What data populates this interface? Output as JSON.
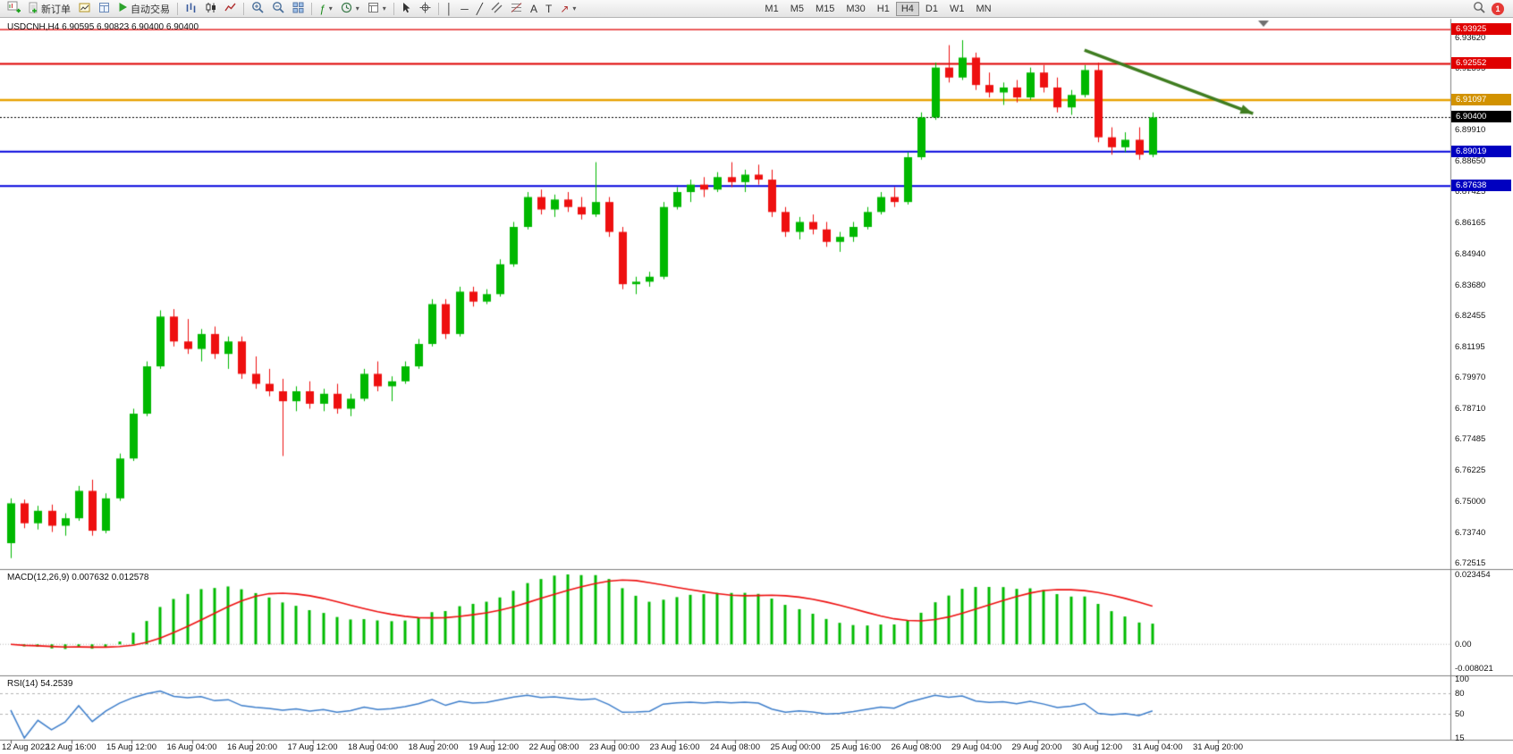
{
  "toolbar": {
    "new_order": "新订单",
    "autotrading": "自动交易",
    "timeframes": [
      "M1",
      "M5",
      "M15",
      "M30",
      "H1",
      "H4",
      "D1",
      "W1",
      "MN"
    ],
    "active_timeframe": "H4",
    "notification_count": "1"
  },
  "chart": {
    "title_line": "USDCNH,H4 6.90595 6.90823 6.90400 6.90400",
    "symbol": "USDCNH",
    "period": "H4"
  },
  "chart_data": [
    {
      "type": "candlestick",
      "symbol": "USDCNH",
      "timeframe": "H4",
      "title": "USDCNH,H4 6.90595 6.90823 6.90400 6.90400",
      "up_color": "#00b800",
      "down_color": "#ee1010",
      "ylim": [
        6.7226,
        6.9436
      ],
      "y_ticks": [
        6.9362,
        6.92395,
        6.91135,
        6.8991,
        6.8865,
        6.87425,
        6.86165,
        6.8494,
        6.8368,
        6.82455,
        6.81195,
        6.7997,
        6.7871,
        6.77485,
        6.76225,
        6.75,
        6.7374,
        6.72515
      ],
      "x_labels": [
        "12 Aug 2022",
        "12 Aug 16:00",
        "15 Aug 12:00",
        "16 Aug 04:00",
        "16 Aug 20:00",
        "17 Aug 12:00",
        "18 Aug 04:00",
        "18 Aug 20:00",
        "19 Aug 12:00",
        "22 Aug 08:00",
        "23 Aug 00:00",
        "23 Aug 16:00",
        "24 Aug 08:00",
        "25 Aug 00:00",
        "25 Aug 16:00",
        "26 Aug 08:00",
        "29 Aug 04:00",
        "29 Aug 20:00",
        "30 Aug 12:00",
        "31 Aug 04:00",
        "31 Aug 20:00"
      ],
      "hlines": [
        {
          "price": 6.93925,
          "color": "#e00000",
          "width": 1.3,
          "badge": "#e00000"
        },
        {
          "price": 6.92552,
          "color": "#e00000",
          "width": 2,
          "badge": "#e00000"
        },
        {
          "price": 6.91097,
          "color": "#e8a200",
          "width": 2.4,
          "badge": "#d29200"
        },
        {
          "price": 6.89019,
          "color": "#0000dd",
          "width": 2,
          "badge": "#0000c0"
        },
        {
          "price": 6.87638,
          "color": "#0000dd",
          "width": 2,
          "badge": "#0000c0"
        }
      ],
      "current_price": 6.904,
      "current_badge_color": "#000000",
      "trend_arrow": {
        "from": {
          "bar": 79,
          "price": 6.931
        },
        "to": {
          "bar": 91.4,
          "price": 6.9055
        },
        "color": "#3f7d20",
        "width": 3.5
      },
      "candles": [
        [
          6.733,
          6.751,
          6.727,
          6.749
        ],
        [
          6.749,
          6.7505,
          6.739,
          6.741
        ],
        [
          6.741,
          6.748,
          6.7385,
          6.746
        ],
        [
          6.746,
          6.7485,
          6.7375,
          6.74
        ],
        [
          6.74,
          6.745,
          6.736,
          6.743
        ],
        [
          6.743,
          6.756,
          6.742,
          6.754
        ],
        [
          6.754,
          6.7585,
          6.736,
          6.738
        ],
        [
          6.738,
          6.753,
          6.737,
          6.751
        ],
        [
          6.751,
          6.769,
          6.75,
          6.767
        ],
        [
          6.767,
          6.787,
          6.766,
          6.785
        ],
        [
          6.785,
          6.806,
          6.784,
          6.804
        ],
        [
          6.804,
          6.8265,
          6.803,
          6.824
        ],
        [
          6.824,
          6.827,
          6.812,
          6.814
        ],
        [
          6.814,
          6.823,
          6.809,
          6.811
        ],
        [
          6.811,
          6.819,
          6.806,
          6.817
        ],
        [
          6.817,
          6.82,
          6.807,
          6.809
        ],
        [
          6.809,
          6.816,
          6.803,
          6.814
        ],
        [
          6.814,
          6.816,
          6.799,
          6.801
        ],
        [
          6.801,
          6.808,
          6.795,
          6.797
        ],
        [
          6.797,
          6.803,
          6.792,
          6.794
        ],
        [
          6.794,
          6.799,
          6.768,
          6.79
        ],
        [
          6.79,
          6.796,
          6.786,
          6.794
        ],
        [
          6.794,
          6.798,
          6.787,
          6.789
        ],
        [
          6.789,
          6.795,
          6.786,
          6.793
        ],
        [
          6.793,
          6.797,
          6.785,
          6.787
        ],
        [
          6.787,
          6.793,
          6.784,
          6.791
        ],
        [
          6.791,
          6.803,
          6.79,
          6.801
        ],
        [
          6.801,
          6.806,
          6.794,
          6.796
        ],
        [
          6.796,
          6.8,
          6.79,
          6.798
        ],
        [
          6.798,
          6.806,
          6.797,
          6.804
        ],
        [
          6.804,
          6.815,
          6.803,
          6.813
        ],
        [
          6.813,
          6.831,
          6.812,
          6.829
        ],
        [
          6.829,
          6.831,
          6.815,
          6.817
        ],
        [
          6.817,
          6.836,
          6.816,
          6.834
        ],
        [
          6.834,
          6.836,
          6.828,
          6.83
        ],
        [
          6.83,
          6.835,
          6.829,
          6.833
        ],
        [
          6.833,
          6.847,
          6.832,
          6.845
        ],
        [
          6.845,
          6.862,
          6.844,
          6.86
        ],
        [
          6.86,
          6.874,
          6.859,
          6.872
        ],
        [
          6.872,
          6.875,
          6.865,
          6.867
        ],
        [
          6.867,
          6.873,
          6.864,
          6.871
        ],
        [
          6.871,
          6.874,
          6.866,
          6.868
        ],
        [
          6.868,
          6.872,
          6.863,
          6.865
        ],
        [
          6.865,
          6.886,
          6.864,
          6.87
        ],
        [
          6.87,
          6.872,
          6.856,
          6.858
        ],
        [
          6.858,
          6.86,
          6.835,
          6.837
        ],
        [
          6.837,
          6.84,
          6.833,
          6.838
        ],
        [
          6.838,
          6.842,
          6.836,
          6.84
        ],
        [
          6.84,
          6.87,
          6.839,
          6.868
        ],
        [
          6.868,
          6.876,
          6.867,
          6.874
        ],
        [
          6.874,
          6.879,
          6.87,
          6.877
        ],
        [
          6.877,
          6.88,
          6.872,
          6.875
        ],
        [
          6.875,
          6.882,
          6.874,
          6.88
        ],
        [
          6.88,
          6.886,
          6.876,
          6.878
        ],
        [
          6.878,
          6.883,
          6.874,
          6.881
        ],
        [
          6.881,
          6.885,
          6.877,
          6.879
        ],
        [
          6.879,
          6.883,
          6.864,
          6.866
        ],
        [
          6.866,
          6.868,
          6.856,
          6.858
        ],
        [
          6.858,
          6.864,
          6.855,
          6.862
        ],
        [
          6.862,
          6.865,
          6.857,
          6.859
        ],
        [
          6.859,
          6.862,
          6.852,
          6.854
        ],
        [
          6.854,
          6.858,
          6.85,
          6.856
        ],
        [
          6.856,
          6.862,
          6.854,
          6.86
        ],
        [
          6.86,
          6.868,
          6.859,
          6.866
        ],
        [
          6.866,
          6.874,
          6.865,
          6.872
        ],
        [
          6.872,
          6.876,
          6.868,
          6.87
        ],
        [
          6.87,
          6.89,
          6.869,
          6.888
        ],
        [
          6.888,
          6.906,
          6.887,
          6.904
        ],
        [
          6.904,
          6.926,
          6.903,
          6.924
        ],
        [
          6.924,
          6.933,
          6.918,
          6.92
        ],
        [
          6.92,
          6.935,
          6.919,
          6.928
        ],
        [
          6.928,
          6.93,
          6.915,
          6.917
        ],
        [
          6.917,
          6.922,
          6.912,
          6.914
        ],
        [
          6.914,
          6.918,
          6.909,
          6.916
        ],
        [
          6.916,
          6.919,
          6.91,
          6.912
        ],
        [
          6.912,
          6.924,
          6.911,
          6.922
        ],
        [
          6.922,
          6.925,
          6.914,
          6.916
        ],
        [
          6.916,
          6.92,
          6.906,
          6.908
        ],
        [
          6.908,
          6.915,
          6.905,
          6.913
        ],
        [
          6.913,
          6.925,
          6.912,
          6.923
        ],
        [
          6.923,
          6.926,
          6.894,
          6.896
        ],
        [
          6.896,
          6.9,
          6.889,
          6.892
        ],
        [
          6.892,
          6.898,
          6.89,
          6.895
        ],
        [
          6.895,
          6.9,
          6.887,
          6.889
        ],
        [
          6.889,
          6.906,
          6.888,
          6.904
        ]
      ]
    },
    {
      "type": "macd",
      "label": "MACD(12,26,9) 0.007632 0.012578",
      "fast": 12,
      "slow": 26,
      "signal_period": 9,
      "current_macd": 0.007632,
      "current_signal": 0.012578,
      "histogram_color": "#00bb00",
      "signal_color": "#ee1010",
      "ylim": [
        -0.008021,
        0.023454
      ],
      "y_ticks": [
        {
          "v": 0.023454,
          "label": "0.023454"
        },
        {
          "v": 0,
          "label": "0.00"
        },
        {
          "v": -0.008021,
          "label": "-0.008021"
        }
      ]
    },
    {
      "type": "rsi",
      "label": "RSI(14) 54.2539",
      "period": 14,
      "current": 54.2539,
      "line_color": "#3d7ecb",
      "levels": [
        80,
        50
      ],
      "ylim": [
        15,
        100
      ],
      "y_ticks": [
        {
          "v": 100,
          "label": "100"
        },
        {
          "v": 80,
          "label": "80"
        },
        {
          "v": 50,
          "label": "50"
        },
        {
          "v": 15,
          "label": "15"
        }
      ]
    }
  ]
}
